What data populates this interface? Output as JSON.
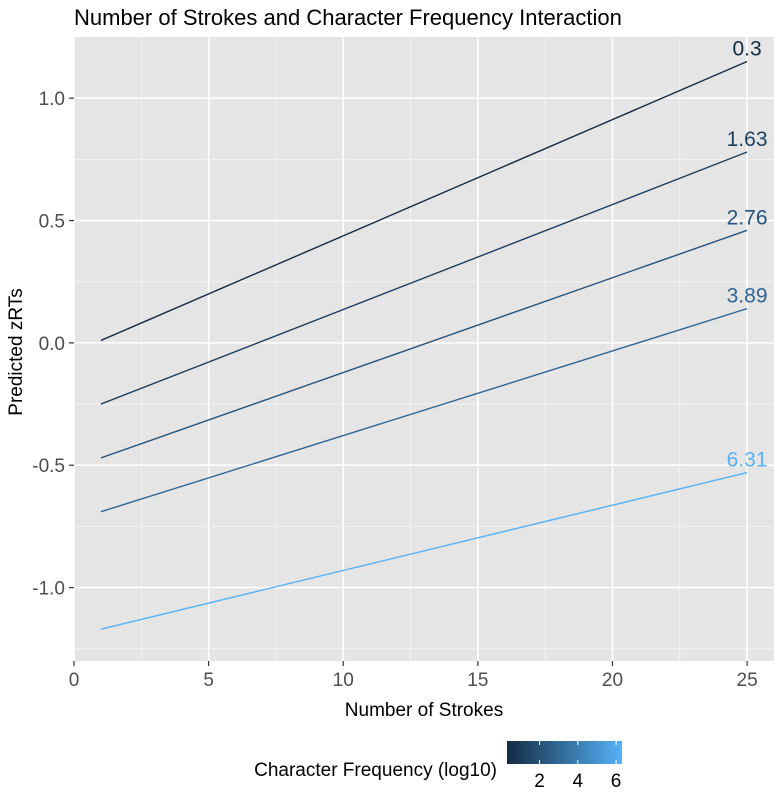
{
  "chart_data": {
    "type": "line",
    "title": "Number of Strokes and Character Frequency Interaction",
    "xlabel": "Number of Strokes",
    "ylabel": "Predicted zRTs",
    "xlim": [
      0,
      26
    ],
    "ylim": [
      -1.3,
      1.25
    ],
    "x_ticks": [
      0,
      5,
      10,
      15,
      20,
      25
    ],
    "y_ticks": [
      -1.0,
      -0.5,
      0.0,
      0.5,
      1.0
    ],
    "y_tick_labels": [
      "-1.0",
      "-0.5",
      "0.0",
      "0.5",
      "1.0"
    ],
    "grid": true,
    "series": [
      {
        "name": "0.3",
        "frequency": 0.3,
        "color": "#132B43",
        "x": [
          1,
          25
        ],
        "y": [
          0.01,
          1.15
        ]
      },
      {
        "name": "1.63",
        "frequency": 1.63,
        "color": "#1D3F5F",
        "x": [
          1,
          25
        ],
        "y": [
          -0.25,
          0.78
        ]
      },
      {
        "name": "2.76",
        "frequency": 2.76,
        "color": "#265279",
        "x": [
          1,
          25
        ],
        "y": [
          -0.47,
          0.46
        ]
      },
      {
        "name": "3.89",
        "frequency": 3.89,
        "color": "#2F6594",
        "x": [
          1,
          25
        ],
        "y": [
          -0.69,
          0.14
        ]
      },
      {
        "name": "6.31",
        "frequency": 6.31,
        "color": "#56B1F7",
        "x": [
          1,
          25
        ],
        "y": [
          -1.17,
          -0.53
        ]
      }
    ],
    "legend": {
      "title": "Character Frequency (log10)",
      "placement": "bottom",
      "type": "colorbar",
      "range": [
        0.3,
        6.31
      ],
      "low_color": "#132B43",
      "high_color": "#56B1F7",
      "ticks": [
        2,
        4,
        6
      ]
    },
    "panel_background": "#E5E5E5",
    "gridline_color": "#FFFFFF"
  }
}
